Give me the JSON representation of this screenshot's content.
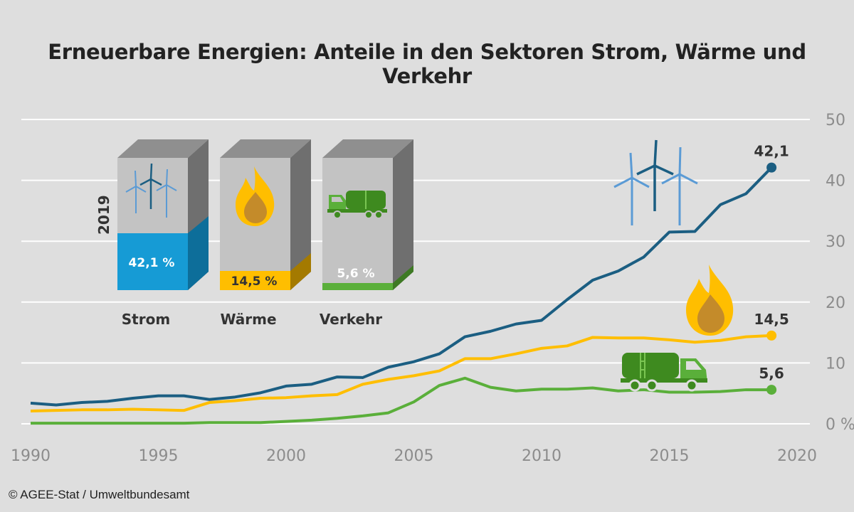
{
  "title": "Erneuerbare Energien: Anteile in den Sektoren Strom, Wärme und Verkehr",
  "credit": "© AGEE-Stat / Umweltbundesamt",
  "colors": {
    "strom": "#1b5e82",
    "waerme": "#ffbe00",
    "verkehr": "#5aaf3a",
    "strom_box": "#169bd5"
  },
  "chart_data": {
    "type": "line",
    "title": "Erneuerbare Energien: Anteile in den Sektoren Strom, Wärme und Verkehr",
    "x": [
      1990,
      1991,
      1992,
      1993,
      1994,
      1995,
      1996,
      1997,
      1998,
      1999,
      2000,
      2001,
      2002,
      2003,
      2004,
      2005,
      2006,
      2007,
      2008,
      2009,
      2010,
      2011,
      2012,
      2013,
      2014,
      2015,
      2016,
      2017,
      2018,
      2019
    ],
    "xlim": [
      1990,
      2020
    ],
    "ylim": [
      0,
      50
    ],
    "unit": "%",
    "x_ticks": [
      "1990",
      "1995",
      "2000",
      "2005",
      "2010",
      "2015",
      "2020"
    ],
    "y_ticks": [
      "0 %",
      "10",
      "20",
      "30",
      "40",
      "50"
    ],
    "grid": true,
    "series": [
      {
        "name": "Strom",
        "color": "#1b5e82",
        "values": [
          3.4,
          3.1,
          3.5,
          3.7,
          4.2,
          4.6,
          4.6,
          4.0,
          4.4,
          5.1,
          6.2,
          6.5,
          7.7,
          7.6,
          9.3,
          10.2,
          11.5,
          14.3,
          15.2,
          16.4,
          17.0,
          20.4,
          23.6,
          25.1,
          27.4,
          31.5,
          31.6,
          36.0,
          37.8,
          42.1
        ],
        "end_label": "42,1"
      },
      {
        "name": "Wärme",
        "color": "#ffbe00",
        "values": [
          2.1,
          2.2,
          2.3,
          2.3,
          2.4,
          2.3,
          2.2,
          3.5,
          3.8,
          4.2,
          4.3,
          4.6,
          4.8,
          6.5,
          7.3,
          7.9,
          8.7,
          10.7,
          10.7,
          11.5,
          12.4,
          12.8,
          14.2,
          14.1,
          14.1,
          13.8,
          13.4,
          13.7,
          14.3,
          14.5
        ],
        "end_label": "14,5"
      },
      {
        "name": "Verkehr",
        "color": "#5aaf3a",
        "values": [
          0.1,
          0.1,
          0.1,
          0.1,
          0.1,
          0.1,
          0.1,
          0.2,
          0.2,
          0.2,
          0.4,
          0.6,
          0.9,
          1.3,
          1.8,
          3.6,
          6.3,
          7.5,
          6.0,
          5.4,
          5.7,
          5.7,
          5.9,
          5.4,
          5.6,
          5.2,
          5.2,
          5.3,
          5.6,
          5.6
        ],
        "end_label": "5,6"
      }
    ],
    "inset": {
      "year": "2019",
      "bars": [
        {
          "sector": "Strom",
          "share": 42.1,
          "label": "42,1 %"
        },
        {
          "sector": "Wärme",
          "share": 14.5,
          "label": "14,5 %"
        },
        {
          "sector": "Verkehr",
          "share": 5.6,
          "label": "5,6 %"
        }
      ]
    }
  }
}
